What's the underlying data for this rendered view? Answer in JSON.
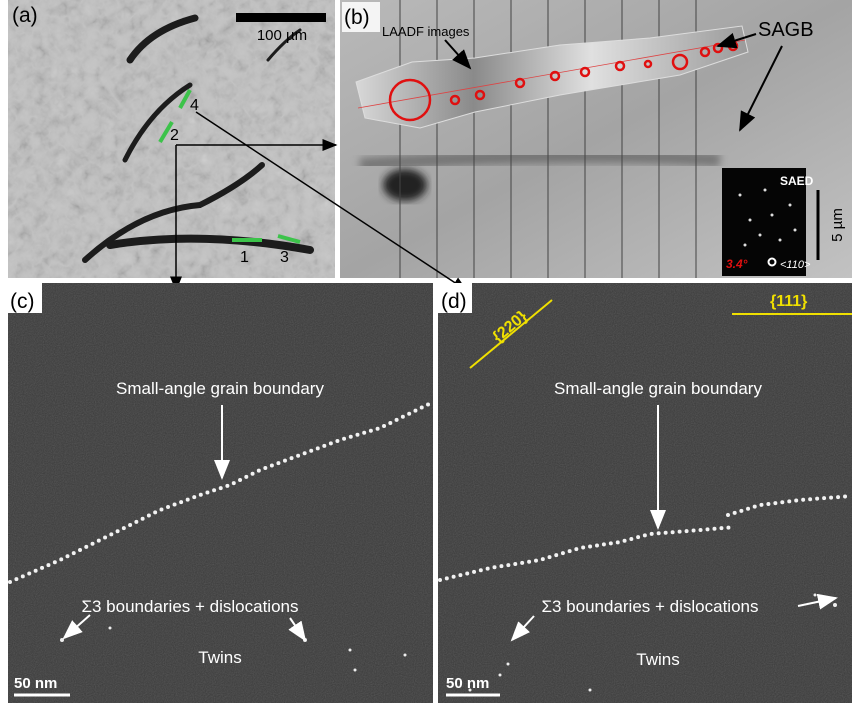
{
  "panels": {
    "a": {
      "label": "(a)",
      "scale_bar": "100 µm",
      "markers": [
        "4",
        "2",
        "1",
        "3"
      ]
    },
    "b": {
      "label": "(b)",
      "annotations": [
        "LAADF images",
        "SAGB"
      ],
      "inset": {
        "title": "SAED",
        "angle": "3.4°",
        "zone": "<110>"
      },
      "scale_bar": "5 µm"
    },
    "c": {
      "label": "(c)",
      "annotations": [
        "Small-angle grain boundary",
        "Σ3 boundaries + dislocations",
        "Twins"
      ],
      "scale_bar": "50 nm"
    },
    "d": {
      "label": "(d)",
      "planes": [
        "{220}",
        "{111}"
      ],
      "annotations": [
        "Small-angle grain boundary",
        "Σ3 boundaries + dislocations",
        "Twins"
      ],
      "scale_bar": "50 nm"
    }
  }
}
